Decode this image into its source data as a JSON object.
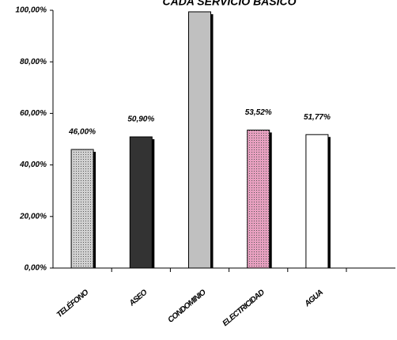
{
  "chart_data": {
    "type": "bar",
    "title": "CADA SERVICIO BASICO",
    "categories": [
      "TELÉFONO",
      "ASEO",
      "CONDOMINIO",
      "ELECTRICIDAD",
      "AGUA"
    ],
    "values": [
      46.0,
      50.9,
      99.4,
      53.52,
      51.77
    ],
    "value_labels": [
      "46,00%",
      "50,90%",
      null,
      "53,52%",
      "51,77%"
    ],
    "colors": [
      "#d0d0d0",
      "#333333",
      "#c0c0c0",
      "#e8a0c0",
      "#ffffff"
    ],
    "fills": [
      "dotted",
      "solid",
      "solid",
      "dotted",
      "solid"
    ],
    "ylim": [
      0,
      100
    ],
    "yticks": [
      {
        "value": 0,
        "label": "0,00%"
      },
      {
        "value": 20,
        "label": "20,00%"
      },
      {
        "value": 40,
        "label": "40,00%"
      },
      {
        "value": 60,
        "label": "60,00%"
      },
      {
        "value": 80,
        "label": "80,00%"
      },
      {
        "value": 100,
        "label": "100,00%"
      }
    ],
    "grid": false
  }
}
